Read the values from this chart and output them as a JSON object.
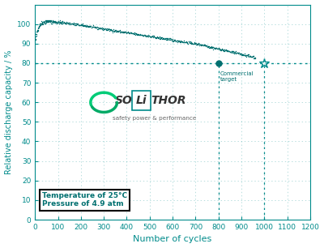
{
  "title": "",
  "xlabel": "Number of cycles",
  "ylabel": "Relative discharge capacity / %",
  "xlim": [
    0,
    1200
  ],
  "ylim": [
    0,
    110
  ],
  "xticks": [
    0,
    100,
    200,
    300,
    400,
    500,
    600,
    700,
    800,
    900,
    1000,
    1100,
    1200
  ],
  "yticks": [
    0,
    10,
    20,
    30,
    40,
    50,
    60,
    70,
    80,
    90,
    100
  ],
  "dot_color": "#007070",
  "hline_y": 80,
  "hline_color": "#008B8B",
  "vline1_x": 800,
  "vline2_x": 1000,
  "marker1_x": 800,
  "marker1_y": 80,
  "marker2_x": 1000,
  "marker2_y": 80,
  "annotation_text": "Commercial\ntarget",
  "temp_text": "Temperature of 25°C",
  "pressure_text": "Pressure of 4.9 atm",
  "bg_color": "#ffffff",
  "grid_color": "#008B8B",
  "tick_color": "#008B8B",
  "label_color": "#008B8B",
  "spine_color": "#008B8B",
  "logo_so_color": "#333333",
  "logo_thor_color": "#333333",
  "logo_li_color": "#333333",
  "logo_li_box_color": "#008B8B",
  "logo_tagline_color": "#666666",
  "logo_icon_color1": "#00CC77",
  "logo_icon_color2": "#00AA66",
  "textbox_edge_color": "#000000",
  "textbox_text_color": "#007070"
}
